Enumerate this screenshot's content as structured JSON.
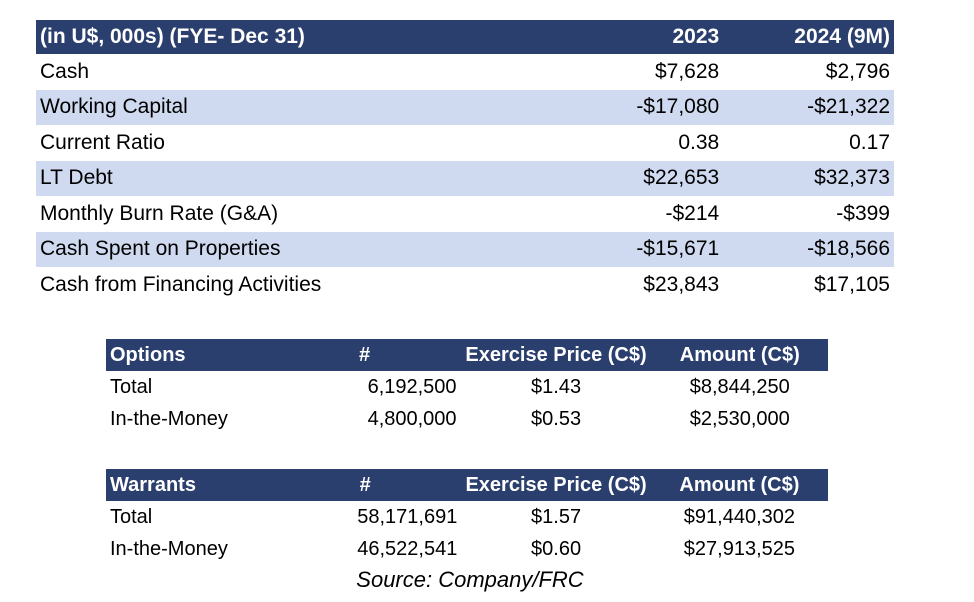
{
  "financials": {
    "header": [
      "(in U$, 000s) (FYE- Dec 31)",
      "2023",
      "2024 (9M)"
    ],
    "rows": [
      [
        "Cash",
        "$7,628",
        "$2,796"
      ],
      [
        "Working Capital",
        "-$17,080",
        "-$21,322"
      ],
      [
        "Current Ratio",
        "0.38",
        "0.17"
      ],
      [
        "LT Debt",
        "$22,653",
        "$32,373"
      ],
      [
        "Monthly Burn Rate (G&A)",
        "-$214",
        "-$399"
      ],
      [
        "Cash Spent on Properties",
        "-$15,671",
        "-$18,566"
      ],
      [
        "Cash from Financing Activities",
        "$23,843",
        "$17,105"
      ]
    ]
  },
  "options": {
    "header": [
      "Options",
      "#",
      "Exercise Price (C$)",
      "Amount (C$)"
    ],
    "rows": [
      [
        "Total",
        "6,192,500",
        "$1.43",
        "$8,844,250"
      ],
      [
        "In-the-Money",
        "4,800,000",
        "$0.53",
        "$2,530,000"
      ]
    ]
  },
  "warrants": {
    "header": [
      "Warrants",
      "#",
      "Exercise Price (C$)",
      "Amount (C$)"
    ],
    "rows": [
      [
        "Total",
        "58,171,691",
        "$1.57",
        "$91,440,302"
      ],
      [
        "In-the-Money",
        "46,522,541",
        "$0.60",
        "$27,913,525"
      ]
    ]
  },
  "source": "Source: Company/FRC",
  "colors": {
    "header_bg": "#2b3f6e",
    "band_bg": "#cfdaf0",
    "header_text": "#ffffff"
  }
}
